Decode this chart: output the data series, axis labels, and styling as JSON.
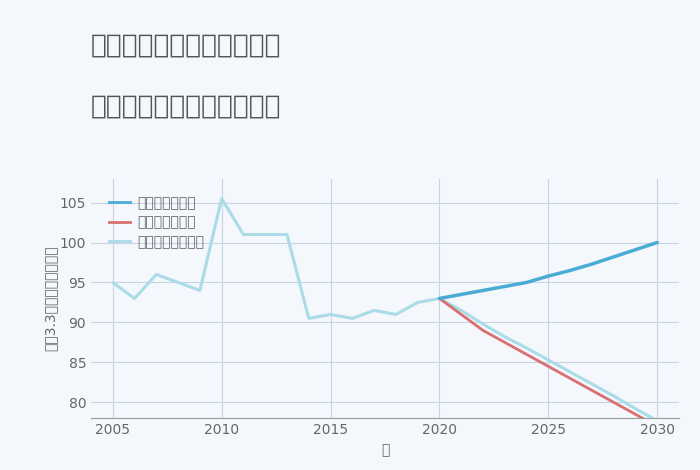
{
  "title_line1": "千葉県野田市山崎貝塚町の",
  "title_line2": "中古マンションの価格推移",
  "xlabel": "年",
  "ylabel": "坪（3.3㎡）単価（万円）",
  "historical_years": [
    2005,
    2006,
    2007,
    2008,
    2009,
    2010,
    2011,
    2012,
    2013,
    2014,
    2015,
    2016,
    2017,
    2018,
    2019,
    2020
  ],
  "historical_values": [
    95.0,
    93.0,
    96.0,
    95.0,
    94.0,
    105.5,
    101.0,
    101.0,
    101.0,
    90.5,
    91.0,
    90.5,
    91.5,
    91.0,
    92.5,
    93.0
  ],
  "forecast_years": [
    2020,
    2021,
    2022,
    2023,
    2024,
    2025,
    2026,
    2027,
    2028,
    2029,
    2030
  ],
  "good_values": [
    93.0,
    93.5,
    94.0,
    94.5,
    95.0,
    95.8,
    96.5,
    97.3,
    98.2,
    99.1,
    100.0
  ],
  "bad_values": [
    93.0,
    91.0,
    89.0,
    87.5,
    86.0,
    84.5,
    83.0,
    81.5,
    80.0,
    78.5,
    77.0
  ],
  "normal_values": [
    93.0,
    91.5,
    89.8,
    88.2,
    86.8,
    85.3,
    83.8,
    82.3,
    80.8,
    79.2,
    77.7
  ],
  "good_color": "#4aacd4",
  "bad_color": "#d97070",
  "normal_color": "#aadce8",
  "hist_color": "#aadce8",
  "bg_color": "#f4f7fc",
  "plot_bg": "#f4f7fc",
  "grid_color": "#c5d5e5",
  "ylim": [
    78,
    108
  ],
  "xlim": [
    2004,
    2031
  ],
  "yticks": [
    80,
    85,
    90,
    95,
    100,
    105
  ],
  "xticks": [
    2005,
    2010,
    2015,
    2020,
    2025,
    2030
  ],
  "legend_labels": [
    "グッドシナリオ",
    "バッドシナリオ",
    "ノーマルシナリオ"
  ],
  "title_fontsize": 19,
  "axis_fontsize": 10,
  "tick_fontsize": 10,
  "legend_fontsize": 10
}
